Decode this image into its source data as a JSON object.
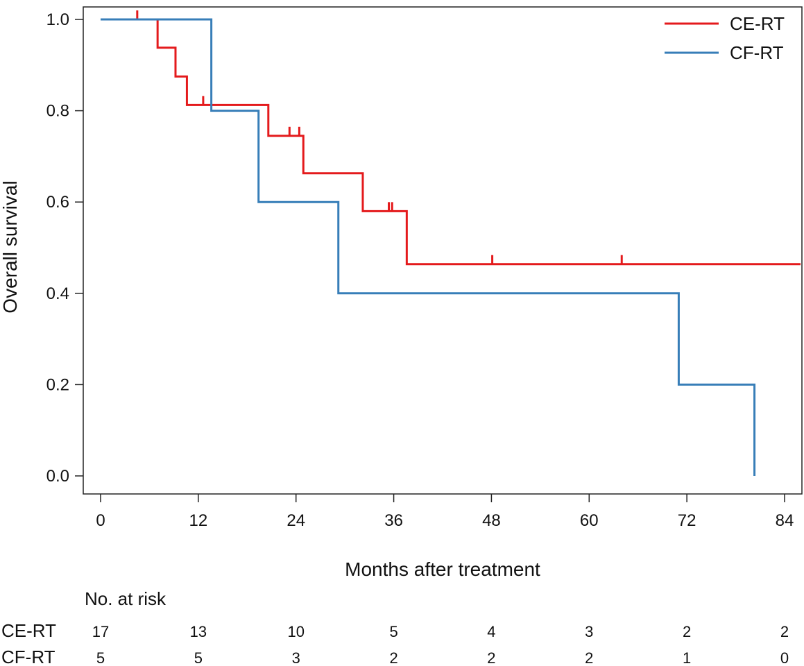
{
  "chart_data": {
    "type": "line",
    "subtype": "kaplan-meier step",
    "xlabel": "Months after treatment",
    "ylabel": "Overall survival",
    "xlim": [
      -2,
      86
    ],
    "ylim": [
      0,
      1.0
    ],
    "x_ticks": [
      0,
      12,
      24,
      36,
      48,
      60,
      72,
      84
    ],
    "x_tick_labels": [
      "0",
      "12",
      "24",
      "36",
      "48",
      "60",
      "72",
      "84"
    ],
    "y_ticks": [
      0,
      0.2,
      0.4,
      0.6,
      0.8,
      1.0
    ],
    "y_tick_labels": [
      "0.0",
      "0.2",
      "0.4",
      "0.6",
      "0.8",
      "1.0"
    ],
    "grid": false,
    "legend_position": "top-right",
    "series": [
      {
        "name": "CE-RT",
        "color": "#e41a1c",
        "steps": [
          [
            0,
            1.0
          ],
          [
            7.0,
            0.938
          ],
          [
            9.2,
            0.875
          ],
          [
            10.6,
            0.8125
          ],
          [
            20.6,
            0.745
          ],
          [
            24.9,
            0.663
          ],
          [
            32.2,
            0.58
          ],
          [
            37.6,
            0.464
          ]
        ],
        "x_end": 86,
        "censored": [
          [
            4.5,
            1.0
          ],
          [
            12.6,
            0.8125
          ],
          [
            23.2,
            0.745
          ],
          [
            24.4,
            0.745
          ],
          [
            35.4,
            0.58
          ],
          [
            35.8,
            0.58
          ],
          [
            48.1,
            0.464
          ],
          [
            64.0,
            0.464
          ]
        ]
      },
      {
        "name": "CF-RT",
        "color": "#377eb8",
        "steps": [
          [
            0,
            1.0
          ],
          [
            13.6,
            0.8
          ],
          [
            19.4,
            0.6
          ],
          [
            29.2,
            0.4
          ],
          [
            71.0,
            0.2
          ],
          [
            80.3,
            0.0
          ]
        ],
        "x_end": 80.3,
        "censored": []
      }
    ],
    "risk_table": {
      "title": "No. at risk",
      "times": [
        0,
        12,
        24,
        36,
        48,
        60,
        72,
        84
      ],
      "rows": [
        {
          "name": "CE-RT",
          "values": [
            "17",
            "13",
            "10",
            "5",
            "4",
            "3",
            "2",
            "2"
          ]
        },
        {
          "name": "CF-RT",
          "values": [
            "5",
            "5",
            "3",
            "2",
            "2",
            "2",
            "1",
            "0"
          ]
        }
      ]
    }
  }
}
